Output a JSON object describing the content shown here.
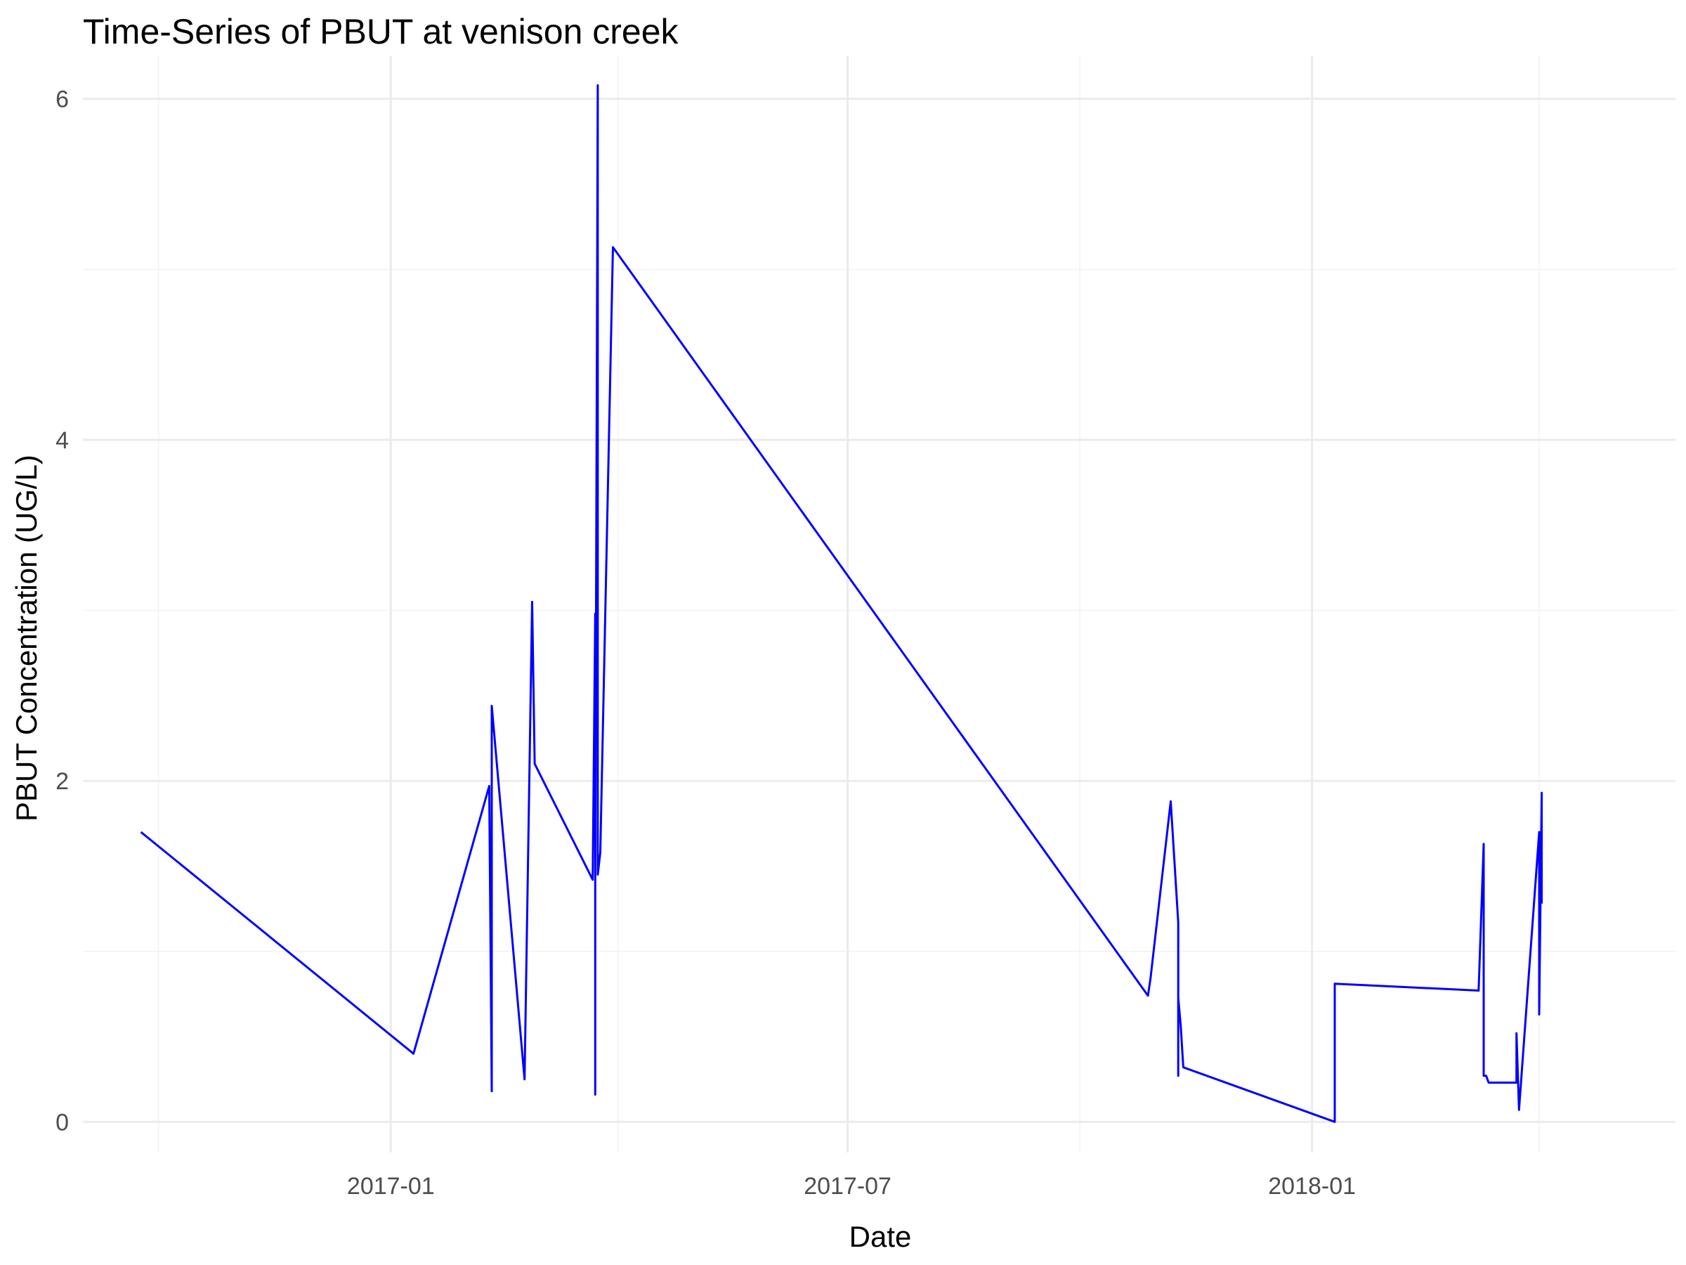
{
  "chart_data": {
    "type": "line",
    "title": "Time-Series of PBUT at venison creek",
    "xlabel": "Date",
    "ylabel": "PBUT Concentration (UG/L)",
    "x_ticks": [
      {
        "date": "2017-01-01",
        "label": "2017-01"
      },
      {
        "date": "2017-07-01",
        "label": "2017-07"
      },
      {
        "date": "2018-01-01",
        "label": "2018-01"
      }
    ],
    "x_minor_ticks": [
      "2016-10-01",
      "2017-04-01",
      "2017-10-01",
      "2018-04-01"
    ],
    "y_ticks": [
      0,
      2,
      4,
      6
    ],
    "y_minor_ticks": [
      1,
      3,
      5
    ],
    "xlim": [
      "2016-09-01",
      "2018-05-25"
    ],
    "ylim": [
      -0.18,
      6.25
    ],
    "grid": true,
    "line_color": "#0000ff",
    "series": [
      {
        "x": [
          "2016-09-24",
          "2017-01-10",
          "2017-02-09",
          "2017-02-10",
          "2017-02-10",
          "2017-02-23",
          "2017-02-26",
          "2017-02-27",
          "2017-03-22",
          "2017-03-23",
          "2017-03-23",
          "2017-03-23",
          "2017-03-24",
          "2017-03-24",
          "2017-03-24",
          "2017-03-24",
          "2017-03-25",
          "2017-03-30",
          "2017-10-28",
          "2017-10-29",
          "2017-11-06",
          "2017-11-09",
          "2017-11-09",
          "2017-11-09",
          "2017-11-10",
          "2017-11-11",
          "2018-01-10",
          "2018-01-10",
          "2018-03-08",
          "2018-03-10",
          "2018-03-10",
          "2018-03-11",
          "2018-03-12",
          "2018-03-23",
          "2018-03-23",
          "2018-03-24",
          "2018-04-01",
          "2018-04-01",
          "2018-04-02",
          "2018-04-02"
        ],
        "values": [
          1.7,
          0.4,
          1.97,
          0.18,
          2.44,
          0.25,
          3.05,
          2.1,
          1.42,
          2.98,
          0.16,
          1.5,
          6.08,
          1.48,
          2.3,
          1.45,
          1.58,
          5.13,
          0.74,
          0.84,
          1.88,
          1.17,
          0.27,
          0.73,
          0.56,
          0.32,
          0.0,
          0.81,
          0.77,
          1.63,
          0.27,
          0.27,
          0.23,
          0.23,
          0.52,
          0.07,
          1.7,
          0.63,
          1.93,
          1.28
        ]
      }
    ]
  }
}
